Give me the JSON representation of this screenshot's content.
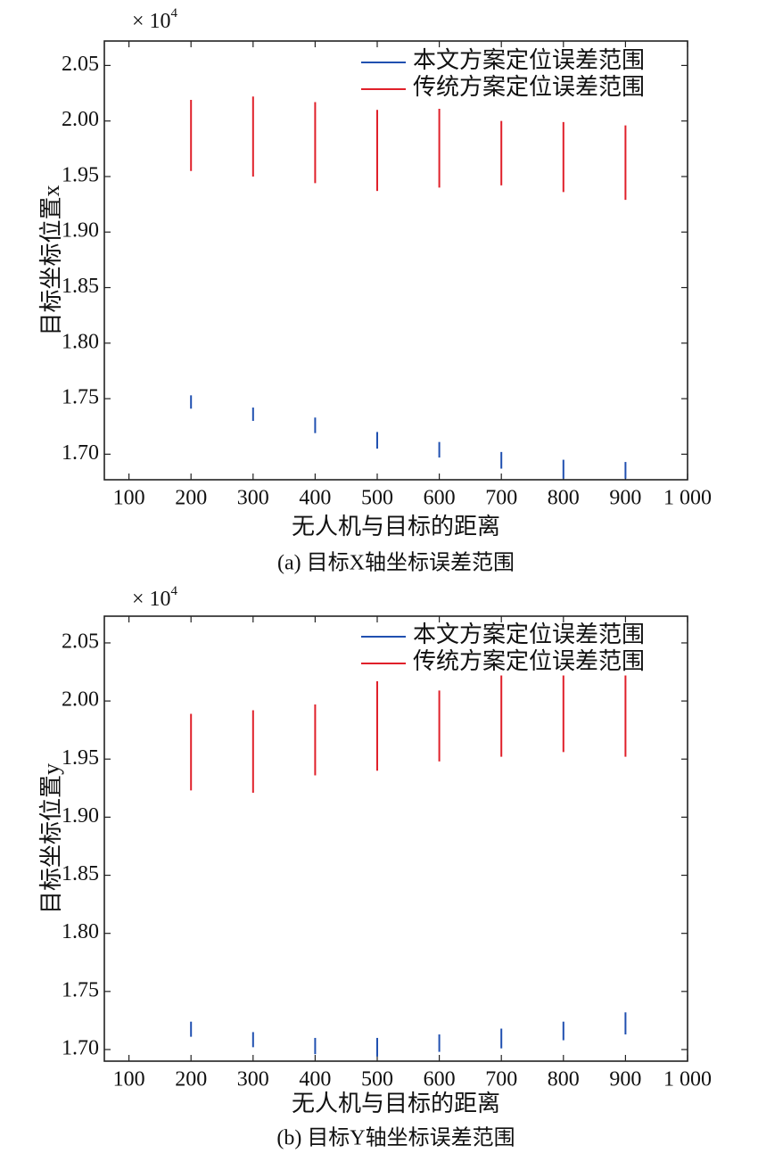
{
  "chart_data": [
    {
      "type": "range",
      "title": "(a) 目标X轴坐标误差范围",
      "xlabel": "无人机与目标的距离",
      "ylabel": "目标坐标位置x",
      "scale_base": "× 10",
      "scale_exponent": "4",
      "x": [
        200,
        300,
        400,
        500,
        600,
        700,
        800,
        900
      ],
      "series": [
        {
          "name": "本文方案定位误差范围",
          "color": "#2050b0",
          "low": [
            1.741,
            1.73,
            1.719,
            1.705,
            1.697,
            1.687,
            1.678,
            1.678
          ],
          "high": [
            1.753,
            1.742,
            1.733,
            1.72,
            1.711,
            1.702,
            1.695,
            1.693
          ]
        },
        {
          "name": "传统方案定位误差范围",
          "color": "#e0202a",
          "low": [
            1.955,
            1.95,
            1.944,
            1.937,
            1.94,
            1.942,
            1.936,
            1.929
          ],
          "high": [
            2.019,
            2.022,
            2.017,
            2.01,
            2.011,
            2.0,
            1.999,
            1.996
          ]
        }
      ],
      "xlim": [
        100,
        1000
      ],
      "xticks": [
        100,
        200,
        300,
        400,
        500,
        600,
        700,
        800,
        900,
        {
          "value": 1000,
          "label": "1 000"
        }
      ],
      "ylim": [
        1.677,
        2.072
      ],
      "yticks": [
        {
          "value": 1.7,
          "label": "1.70"
        },
        1.75,
        {
          "value": 1.8,
          "label": "1.80"
        },
        1.85,
        {
          "value": 1.9,
          "label": "1.90"
        },
        1.95,
        {
          "value": 2.0,
          "label": "2.00"
        },
        2.05
      ],
      "legend": "upper right"
    },
    {
      "type": "range",
      "title": "(b) 目标Y轴坐标误差范围",
      "xlabel": "无人机与目标的距离",
      "ylabel": "目标坐标位置y",
      "scale_base": "× 10",
      "scale_exponent": "4",
      "x": [
        200,
        300,
        400,
        500,
        600,
        700,
        800,
        900
      ],
      "series": [
        {
          "name": "本文方案定位误差范围",
          "color": "#2050b0",
          "low": [
            1.711,
            1.702,
            1.696,
            1.694,
            1.698,
            1.701,
            1.708,
            1.713
          ],
          "high": [
            1.724,
            1.715,
            1.71,
            1.71,
            1.713,
            1.718,
            1.724,
            1.732
          ]
        },
        {
          "name": "传统方案定位误差范围",
          "color": "#e0202a",
          "low": [
            1.923,
            1.921,
            1.936,
            1.94,
            1.948,
            1.952,
            1.956,
            1.952
          ],
          "high": [
            1.989,
            1.992,
            1.997,
            2.017,
            2.009,
            2.022,
            2.022,
            2.022
          ]
        }
      ],
      "xlim": [
        100,
        1000
      ],
      "xticks": [
        100,
        200,
        300,
        400,
        500,
        600,
        700,
        800,
        900,
        {
          "value": 1000,
          "label": "1 000"
        }
      ],
      "ylim": [
        1.69,
        2.073
      ],
      "yticks": [
        {
          "value": 1.7,
          "label": "1.70"
        },
        1.75,
        {
          "value": 1.8,
          "label": "1.80"
        },
        1.85,
        {
          "value": 1.9,
          "label": "1.90"
        },
        1.95,
        {
          "value": 2.0,
          "label": "2.00"
        },
        2.05
      ],
      "legend": "upper right"
    }
  ]
}
